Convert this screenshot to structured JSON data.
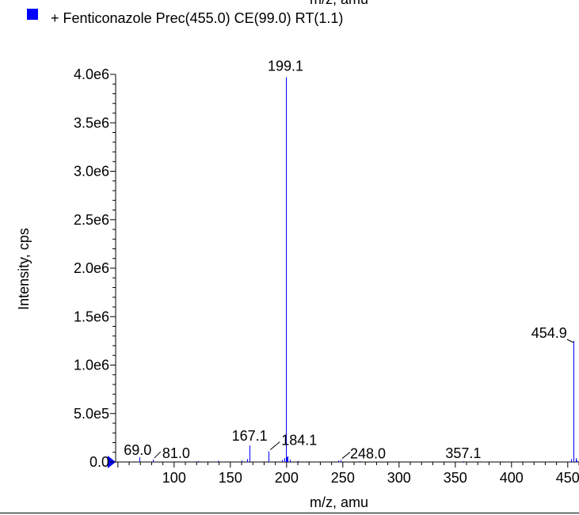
{
  "header": {
    "top_label_clipped": "m/z, amu",
    "legend_swatch_color": "#0000ff",
    "legend_text": "+ Fenticonazole Prec(455.0) CE(99.0) RT(1.1)"
  },
  "chart_data": {
    "type": "bar",
    "title": "",
    "xlabel": "m/z, amu",
    "ylabel": "Intensity, cps",
    "xlim": [
      48,
      460
    ],
    "ylim": [
      0,
      4000000
    ],
    "x_ticks": [
      100,
      150,
      200,
      250,
      300,
      350,
      400,
      450
    ],
    "x_tick_labels": [
      "100",
      "150",
      "200",
      "250",
      "300",
      "350",
      "400",
      "450"
    ],
    "y_ticks": [
      0,
      500000,
      1000000,
      1500000,
      2000000,
      2500000,
      3000000,
      3500000,
      4000000
    ],
    "y_tick_labels": [
      "0.0",
      "5.0e5",
      "1.0e6",
      "1.5e6",
      "2.0e6",
      "2.5e6",
      "3.0e6",
      "3.5e6",
      "4.0e6"
    ],
    "series_color": "#0000ff",
    "peaks": [
      {
        "mz": 69.0,
        "intensity": 50000
      },
      {
        "mz": 81.0,
        "intensity": 25000
      },
      {
        "mz": 121.0,
        "intensity": 10000
      },
      {
        "mz": 139.0,
        "intensity": 12000
      },
      {
        "mz": 160.0,
        "intensity": 15000
      },
      {
        "mz": 165.0,
        "intensity": 30000
      },
      {
        "mz": 167.1,
        "intensity": 170000
      },
      {
        "mz": 184.1,
        "intensity": 110000
      },
      {
        "mz": 196.0,
        "intensity": 20000
      },
      {
        "mz": 198.0,
        "intensity": 40000
      },
      {
        "mz": 199.1,
        "intensity": 3970000
      },
      {
        "mz": 200.1,
        "intensity": 50000
      },
      {
        "mz": 201.1,
        "intensity": 60000
      },
      {
        "mz": 203.0,
        "intensity": 25000
      },
      {
        "mz": 210.0,
        "intensity": 10000
      },
      {
        "mz": 246.0,
        "intensity": 15000
      },
      {
        "mz": 248.0,
        "intensity": 20000
      },
      {
        "mz": 265.0,
        "intensity": 8000
      },
      {
        "mz": 357.1,
        "intensity": 8000
      },
      {
        "mz": 453.0,
        "intensity": 30000
      },
      {
        "mz": 454.9,
        "intensity": 1250000
      },
      {
        "mz": 456.9,
        "intensity": 40000
      },
      {
        "mz": 458.0,
        "intensity": 15000
      }
    ],
    "peak_labels": [
      {
        "text": "199.1",
        "mz": 199.1,
        "intensity": 3970000
      },
      {
        "text": "454.9",
        "mz": 454.9,
        "intensity": 1250000
      },
      {
        "text": "167.1",
        "mz": 167.1,
        "intensity": 170000
      },
      {
        "text": "184.1",
        "mz": 184.1,
        "intensity": 110000
      },
      {
        "text": "69.0",
        "mz": 69.0,
        "intensity": 50000
      },
      {
        "text": "81.0",
        "mz": 81.0,
        "intensity": 25000
      },
      {
        "text": "248.0",
        "mz": 248.0,
        "intensity": 20000
      },
      {
        "text": "357.1",
        "mz": 357.1,
        "intensity": 8000
      }
    ]
  }
}
